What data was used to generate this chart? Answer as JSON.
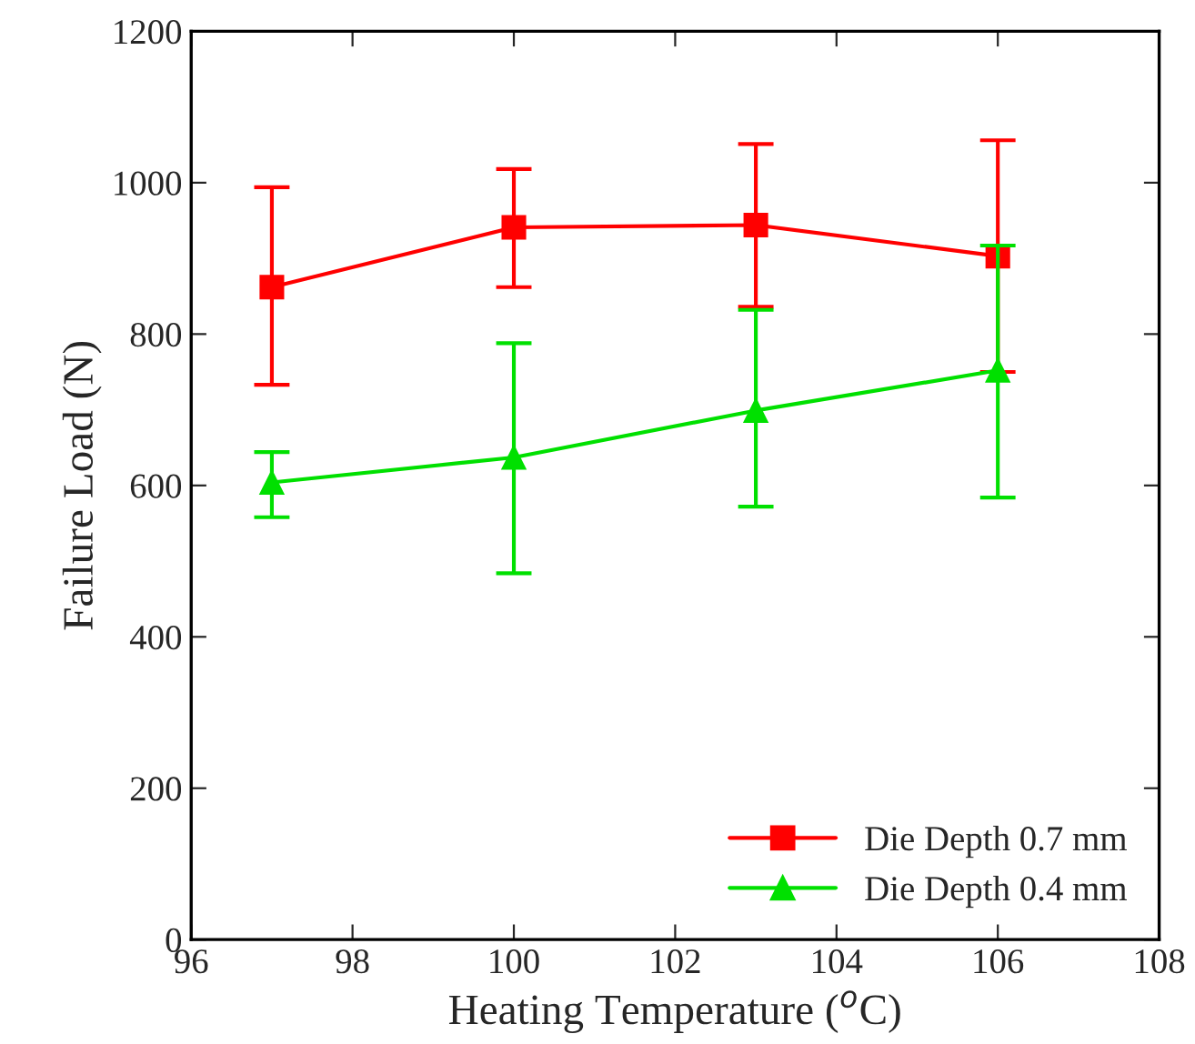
{
  "chart_data": {
    "type": "line",
    "xlabel": "Heating Temperature ($^{o}$C)",
    "ylabel": "Failure Load (N)",
    "x": [
      97,
      100,
      103,
      106
    ],
    "series": [
      {
        "name": "Die Depth 0.7 mm",
        "color": "#ff0000",
        "marker": "square",
        "values": [
          862,
          941,
          944,
          903
        ],
        "errors": [
          [
            733,
            994
          ],
          [
            862,
            1018
          ],
          [
            836,
            1051
          ],
          [
            750,
            1056
          ]
        ]
      },
      {
        "name": "Die Depth 0.4 mm",
        "color": "#00e000",
        "marker": "triangle",
        "values": [
          604,
          637,
          699,
          752
        ],
        "errors": [
          [
            558,
            644
          ],
          [
            484,
            788
          ],
          [
            572,
            832
          ],
          [
            584,
            917
          ]
        ]
      }
    ],
    "xlim": [
      96,
      108
    ],
    "xticks": [
      96,
      98,
      100,
      102,
      104,
      106,
      108
    ],
    "ylim": [
      0,
      1200
    ],
    "yticks": [
      0,
      200,
      400,
      600,
      800,
      1000,
      1200
    ],
    "grid": false,
    "legend": "bottom right",
    "line_style": "solid"
  }
}
